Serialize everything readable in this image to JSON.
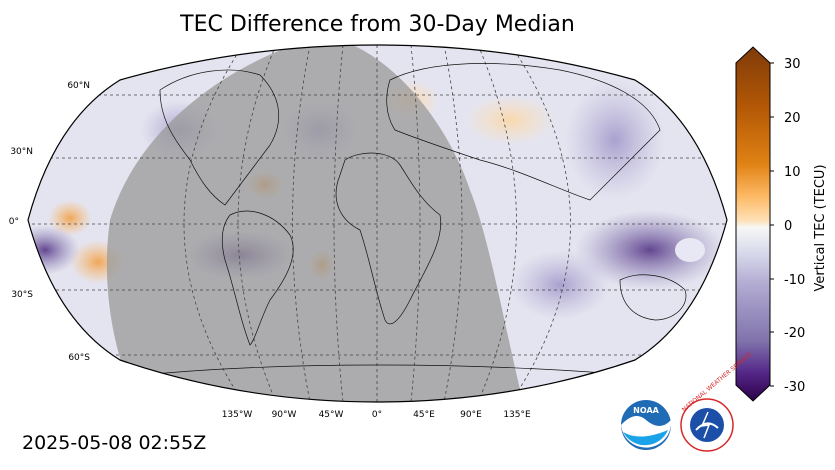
{
  "title": "TEC Difference from 30-Day Median",
  "timestamp": "2025-05-08 02:55Z",
  "map": {
    "projection": "robinson",
    "lat_labels": [
      "60°N",
      "30°N",
      "0°",
      "30°S",
      "60°S"
    ],
    "lon_labels": [
      "135°W",
      "90°W",
      "45°W",
      "0°",
      "45°E",
      "90°E",
      "135°E"
    ],
    "night_shading_color": "#9a9a9a"
  },
  "colorbar": {
    "label": "Vertical TEC (TECU)",
    "ticks": [
      "30",
      "20",
      "10",
      "0",
      "-10",
      "-20",
      "-30"
    ],
    "range": [
      -30,
      30
    ],
    "colors": {
      "high": "#7f3b08",
      "mid_high": "#e08214",
      "zero": "#f7f7f7",
      "mid_low": "#8073ac",
      "low": "#2d004b"
    }
  },
  "logos": {
    "noaa_text": "NOAA",
    "nws_text": "NATIONAL WEATHER SERVICE"
  }
}
